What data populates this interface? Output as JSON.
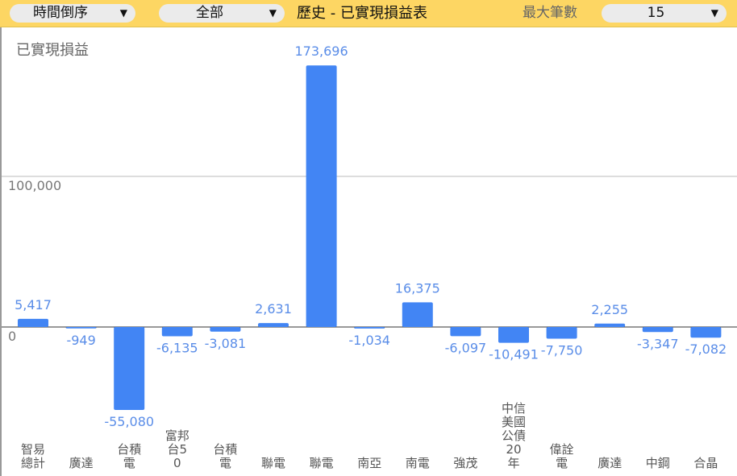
{
  "toolbar": {
    "sort": "時間倒序",
    "filter": "全部",
    "title": "歷史 - 已實現損益表",
    "max_label": "最大筆數",
    "max_value": "15"
  },
  "chart_data": {
    "type": "bar",
    "ylabel": "已實現損益",
    "ylim": [
      -80000,
      190000
    ],
    "yticks": [
      {
        "value": 0,
        "label": "0"
      },
      {
        "value": 100000,
        "label": "100,000"
      }
    ],
    "grid": true,
    "bar_color": "#4285f4",
    "label_color": "#5a8de8",
    "categories": [
      "智易總計",
      "廣達",
      "台積電",
      "富邦台50",
      "台積電",
      "聯電",
      "聯電",
      "南亞",
      "南電",
      "強茂",
      "中信美國公債20年",
      "偉詮電",
      "廣達",
      "中鋼",
      "合晶"
    ],
    "values": [
      5417,
      -949,
      -55080,
      -6135,
      -3081,
      2631,
      173696,
      -1034,
      16375,
      -6097,
      -10491,
      -7750,
      2255,
      -3347,
      -7082
    ],
    "value_labels": [
      "5,417",
      "-949",
      "-55,080",
      "-6,135",
      "-3,081",
      "2,631",
      "173,696",
      "-1,034",
      "16,375",
      "-6,097",
      "-10,491",
      "-7,750",
      "2,255",
      "-3,347",
      "-7,082"
    ]
  }
}
